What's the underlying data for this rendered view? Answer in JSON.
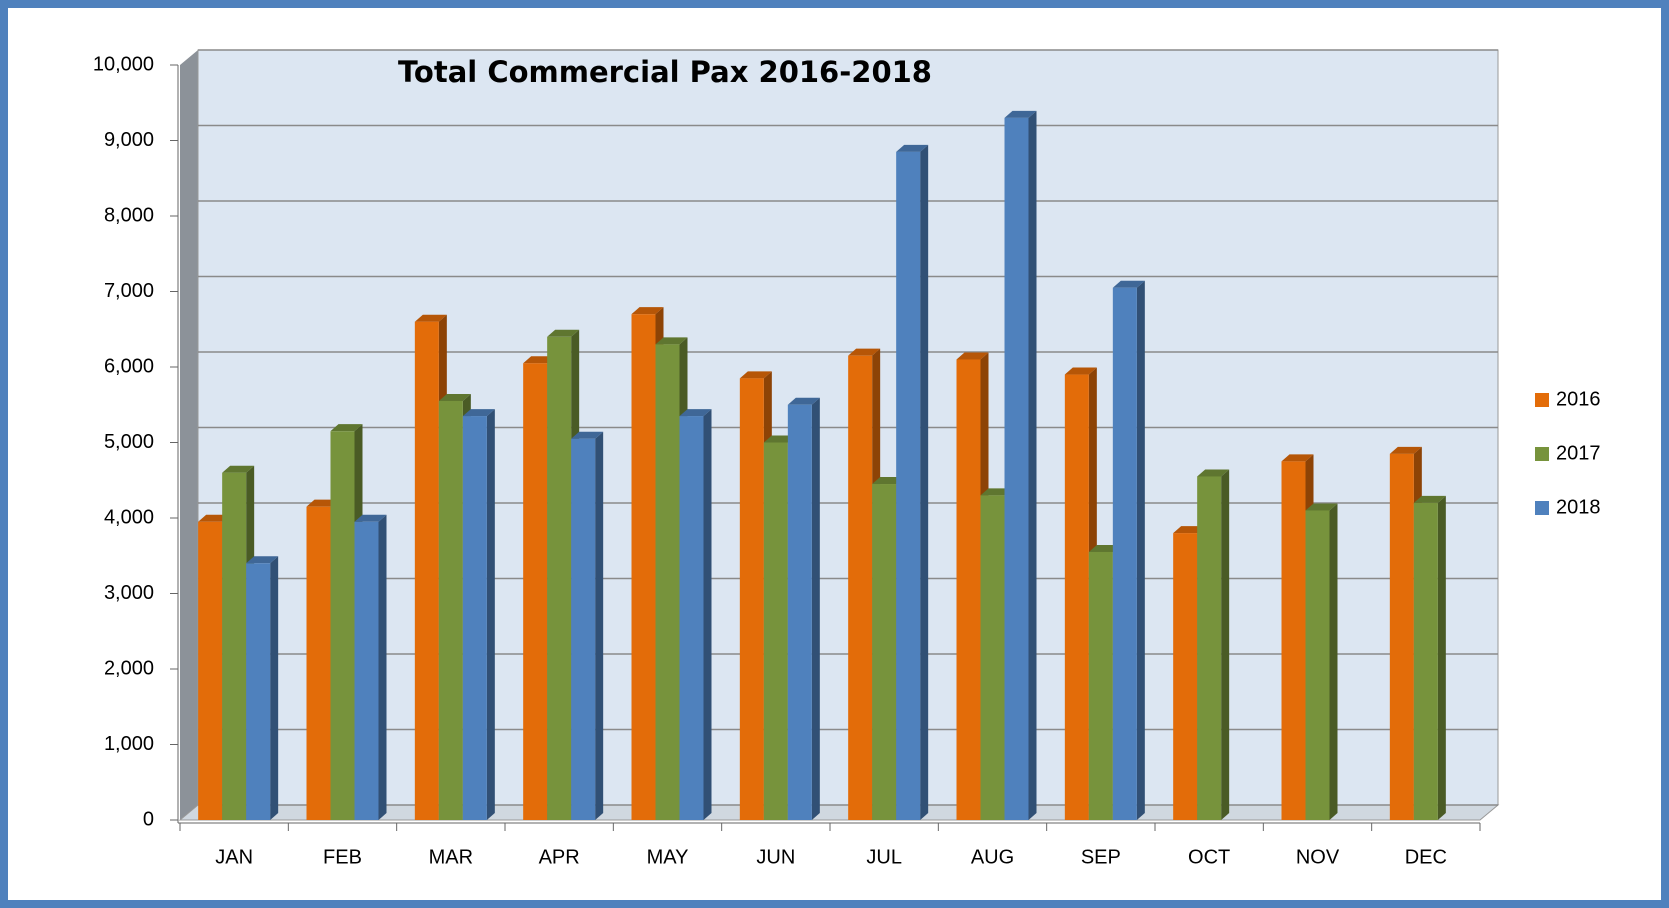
{
  "chart_data": {
    "type": "bar3d",
    "title": "Total Commercial Pax  2016-2018",
    "categories": [
      "JAN",
      "FEB",
      "MAR",
      "APR",
      "MAY",
      "JUN",
      "JUL",
      "AUG",
      "SEP",
      "OCT",
      "NOV",
      "DEC"
    ],
    "series": [
      {
        "name": "2016",
        "color": "#e36c09",
        "values": [
          3950,
          4150,
          6600,
          6050,
          6700,
          5850,
          6150,
          6100,
          5900,
          3800,
          4750,
          4850
        ]
      },
      {
        "name": "2017",
        "color": "#77933c",
        "values": [
          4600,
          5150,
          5550,
          6400,
          6300,
          5000,
          4450,
          4300,
          3550,
          4550,
          4100,
          4200
        ]
      },
      {
        "name": "2018",
        "color": "#4f81bd",
        "values": [
          3400,
          3950,
          5350,
          5050,
          5350,
          5500,
          8850,
          9300,
          7050,
          null,
          null,
          null
        ]
      }
    ],
    "ylim": [
      0,
      10000
    ],
    "yticks": [
      0,
      {
        "value": 1000,
        "label": "1,000"
      },
      {
        "value": 2000,
        "label": "2,000"
      },
      {
        "value": 3000,
        "label": "3,000"
      },
      {
        "value": 4000,
        "label": "4,000"
      },
      {
        "value": 5000,
        "label": "5,000"
      },
      {
        "value": 6000,
        "label": "6,000"
      },
      {
        "value": 7000,
        "label": "7,000"
      },
      {
        "value": 8000,
        "label": "8,000"
      },
      {
        "value": 9000,
        "label": "9,000"
      },
      {
        "value": 10000,
        "label": "10,000"
      }
    ],
    "grid": true,
    "legend": "right"
  }
}
